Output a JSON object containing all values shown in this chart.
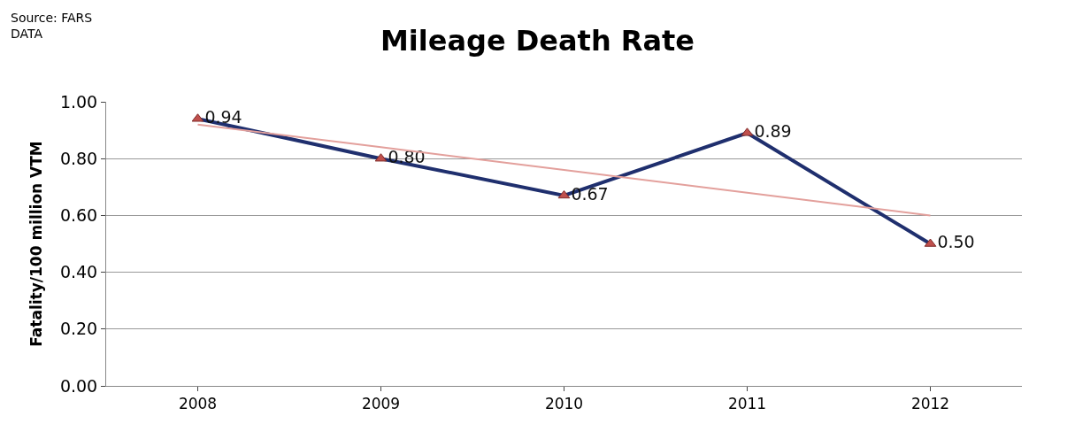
{
  "chart_data": {
    "type": "line",
    "title": "Mileage Death Rate",
    "ylabel": "Fatality/100 million VTM",
    "annotations": [
      "Source: FARS DATA"
    ],
    "categories": [
      "2008",
      "2009",
      "2010",
      "2011",
      "2012"
    ],
    "series": [
      {
        "color": "#1f2f6e",
        "values": [
          0.94,
          0.8,
          0.67,
          0.89,
          0.5
        ],
        "marker": "triangle",
        "value_labels": [
          "0.94",
          "0.80",
          "0.67",
          "0.89",
          "0.50"
        ]
      },
      {
        "type": "line",
        "color": "#e3a09c",
        "values": [
          0.92,
          0.84,
          0.76,
          0.68,
          0.6
        ],
        "marker": "none"
      }
    ],
    "ylim": [
      0,
      1
    ],
    "yticks": [
      {
        "value": 0,
        "label": "0.00"
      },
      {
        "value": 0.2,
        "label": "0.20"
      },
      {
        "value": 0.4,
        "label": "0.40"
      },
      {
        "value": 0.6,
        "label": "0.60"
      },
      {
        "value": 0.8,
        "label": "0.80"
      },
      {
        "value": 1,
        "label": "1.00"
      }
    ],
    "grid": "y"
  }
}
